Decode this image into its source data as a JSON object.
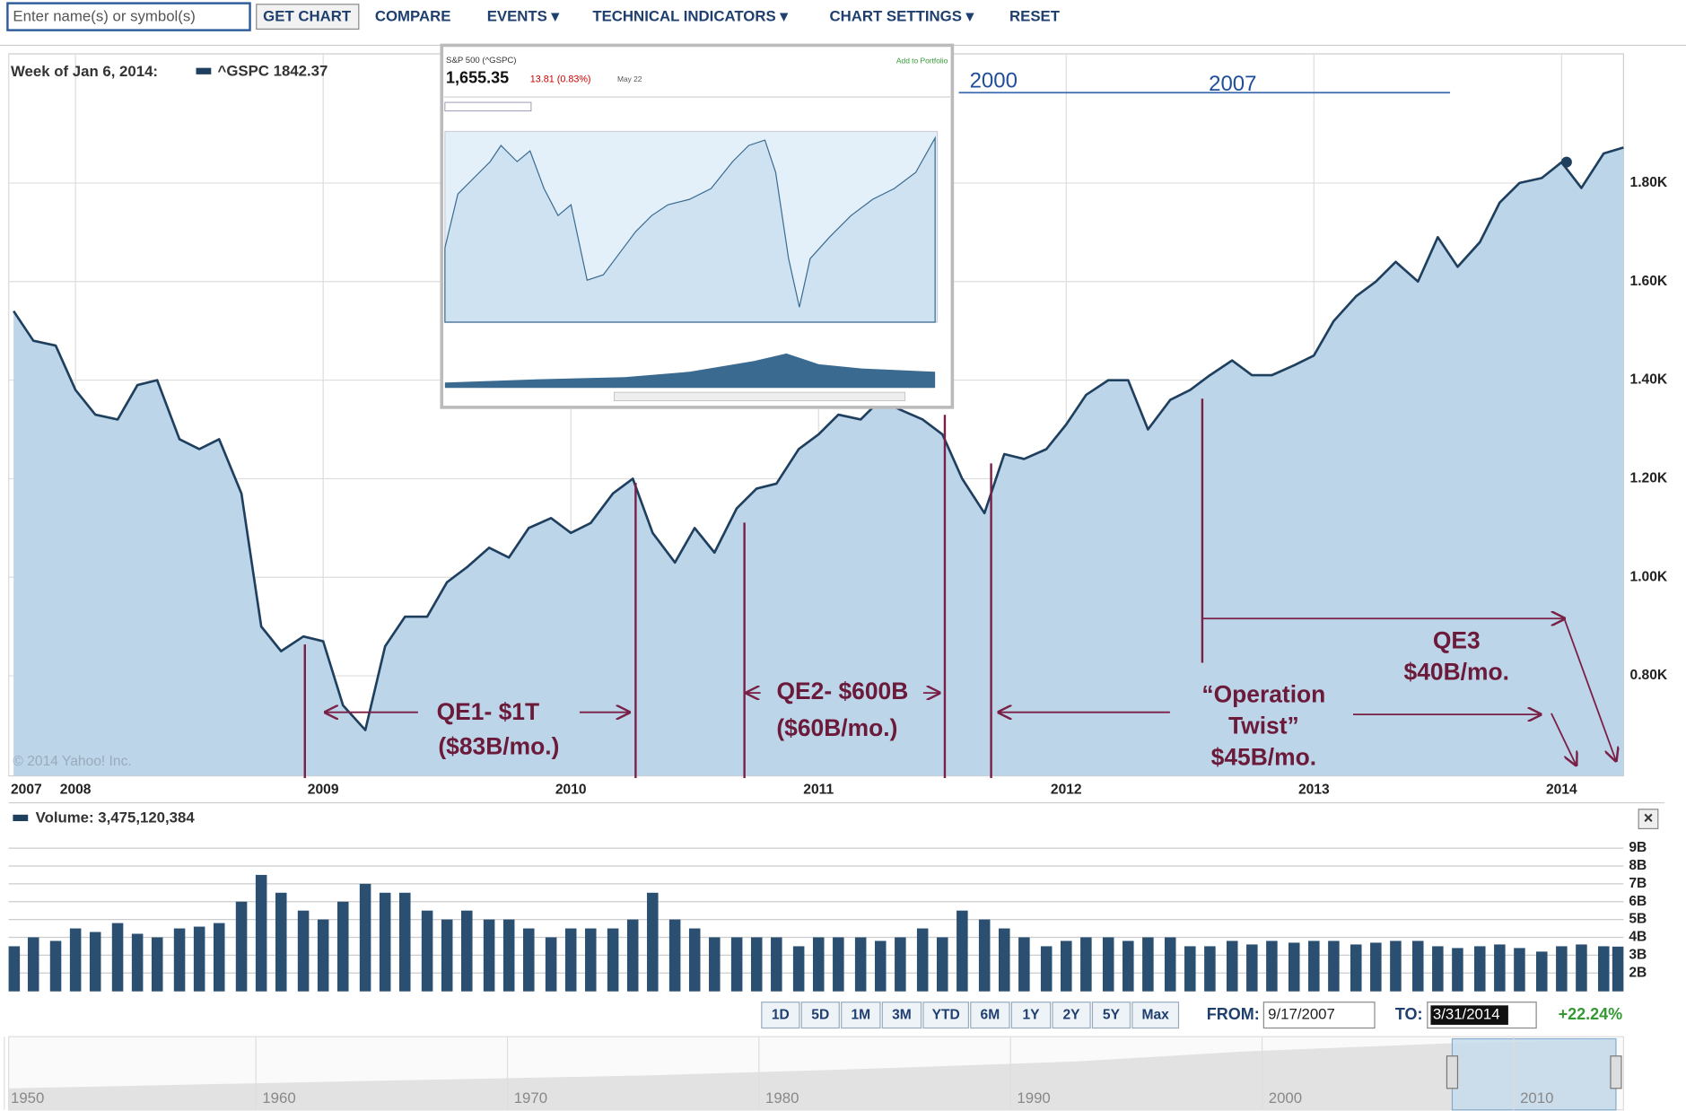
{
  "toolbar": {
    "search_placeholder": "Enter name(s) or symbol(s)",
    "buttons": [
      "GET CHART",
      "COMPARE",
      "EVENTS ▾",
      "TECHNICAL INDICATORS ▾",
      "CHART SETTINGS ▾",
      "RESET"
    ]
  },
  "inset": {
    "title": "S&P 500 (^GSPC)",
    "price": "1,655.35",
    "change": "13.81 (0.83%)",
    "date": "May 22",
    "add": "Add to Portfolio"
  },
  "inset_labels": [
    "2000",
    "2007"
  ],
  "chart_data": [
    {
      "type": "line",
      "header": "Week of Jan 6, 2014:",
      "name": "^GSPC",
      "last_value": 1842.37,
      "last_x": 2014.02,
      "color": "#1f3f5f",
      "fill": "#bcd5e8",
      "grid": true,
      "watermark": "© 2014 Yahoo! Inc.",
      "x": [
        2007.75,
        2007.83,
        2007.92,
        2008.0,
        2008.08,
        2008.17,
        2008.25,
        2008.33,
        2008.42,
        2008.5,
        2008.58,
        2008.67,
        2008.75,
        2008.83,
        2008.92,
        2009.0,
        2009.08,
        2009.17,
        2009.25,
        2009.33,
        2009.42,
        2009.5,
        2009.58,
        2009.67,
        2009.75,
        2009.83,
        2009.92,
        2010.0,
        2010.08,
        2010.17,
        2010.25,
        2010.33,
        2010.42,
        2010.5,
        2010.58,
        2010.67,
        2010.75,
        2010.83,
        2010.92,
        2011.0,
        2011.08,
        2011.17,
        2011.25,
        2011.33,
        2011.42,
        2011.5,
        2011.58,
        2011.67,
        2011.75,
        2011.83,
        2011.92,
        2012.0,
        2012.08,
        2012.17,
        2012.25,
        2012.33,
        2012.42,
        2012.5,
        2012.58,
        2012.67,
        2012.75,
        2012.83,
        2012.92,
        2013.0,
        2013.08,
        2013.17,
        2013.25,
        2013.33,
        2013.42,
        2013.5,
        2013.58,
        2013.67,
        2013.75,
        2013.83,
        2013.92,
        2014.0,
        2014.08,
        2014.17,
        2014.25
      ],
      "values": [
        1540,
        1480,
        1470,
        1380,
        1330,
        1320,
        1390,
        1400,
        1280,
        1260,
        1280,
        1170,
        900,
        850,
        880,
        870,
        740,
        690,
        860,
        920,
        920,
        990,
        1020,
        1060,
        1040,
        1100,
        1120,
        1090,
        1110,
        1170,
        1200,
        1090,
        1030,
        1100,
        1050,
        1140,
        1180,
        1190,
        1260,
        1290,
        1330,
        1320,
        1360,
        1340,
        1320,
        1290,
        1200,
        1130,
        1250,
        1240,
        1260,
        1310,
        1370,
        1400,
        1400,
        1300,
        1360,
        1380,
        1410,
        1440,
        1410,
        1410,
        1430,
        1450,
        1520,
        1570,
        1600,
        1640,
        1600,
        1690,
        1630,
        1680,
        1760,
        1800,
        1810,
        1842,
        1790,
        1860,
        1872
      ],
      "xlim": [
        2007.73,
        2014.25
      ],
      "xticks": [
        {
          "value": 2007.73,
          "label": "2007"
        },
        2008,
        2009,
        2010,
        2011,
        2012,
        2013,
        2014
      ],
      "ylim": [
        597,
        2062
      ],
      "yticks": [
        {
          "value": 800,
          "label": "0.80K"
        },
        {
          "value": 1000,
          "label": "1.00K"
        },
        {
          "value": 1200,
          "label": "1.20K"
        },
        {
          "value": 1400,
          "label": "1.40K"
        },
        {
          "value": 1600,
          "label": "1.60K"
        },
        {
          "value": 1800,
          "label": "1.80K"
        }
      ],
      "annotations": [
        "QE1- $1T",
        "($83B/mo.)",
        "QE2- $600B",
        "($60B/mo.)",
        "“Operation",
        "Twist”",
        "$45B/mo.",
        "QE3",
        "$40B/mo."
      ]
    },
    {
      "type": "bar",
      "header": "Volume:",
      "last_volume": {
        "value": 3475120384,
        "label": "3,475,120,384"
      },
      "color": "#2a4f70",
      "grid": true,
      "x": [
        2007.75,
        2007.83,
        2007.92,
        2008.0,
        2008.08,
        2008.17,
        2008.25,
        2008.33,
        2008.42,
        2008.5,
        2008.58,
        2008.67,
        2008.75,
        2008.83,
        2008.92,
        2009.0,
        2009.08,
        2009.17,
        2009.25,
        2009.33,
        2009.42,
        2009.5,
        2009.58,
        2009.67,
        2009.75,
        2009.83,
        2009.92,
        2010.0,
        2010.08,
        2010.17,
        2010.25,
        2010.33,
        2010.42,
        2010.5,
        2010.58,
        2010.67,
        2010.75,
        2010.83,
        2010.92,
        2011.0,
        2011.08,
        2011.17,
        2011.25,
        2011.33,
        2011.42,
        2011.5,
        2011.58,
        2011.67,
        2011.75,
        2011.83,
        2011.92,
        2012.0,
        2012.08,
        2012.17,
        2012.25,
        2012.33,
        2012.42,
        2012.5,
        2012.58,
        2012.67,
        2012.75,
        2012.83,
        2012.92,
        2013.0,
        2013.08,
        2013.17,
        2013.25,
        2013.33,
        2013.42,
        2013.5,
        2013.58,
        2013.67,
        2013.75,
        2013.83,
        2013.92,
        2014.0,
        2014.08,
        2014.17,
        2014.25
      ],
      "values": [
        3.5,
        4.0,
        3.8,
        4.5,
        4.3,
        4.8,
        4.2,
        4.0,
        4.5,
        4.6,
        4.8,
        6.0,
        7.5,
        6.5,
        5.5,
        5.0,
        6.0,
        7.0,
        6.5,
        6.5,
        5.5,
        5.0,
        5.5,
        5.0,
        5.0,
        4.5,
        4.0,
        4.5,
        4.5,
        4.5,
        5.0,
        6.5,
        5.0,
        4.5,
        4.0,
        4.0,
        4.0,
        4.0,
        3.5,
        4.0,
        4.0,
        4.0,
        3.8,
        4.0,
        4.5,
        4.0,
        5.5,
        5.0,
        4.5,
        4.0,
        3.5,
        3.8,
        4.0,
        4.0,
        3.8,
        4.0,
        4.0,
        3.5,
        3.5,
        3.8,
        3.6,
        3.8,
        3.7,
        3.8,
        3.8,
        3.6,
        3.7,
        3.8,
        3.8,
        3.5,
        3.4,
        3.5,
        3.6,
        3.4,
        3.2,
        3.5,
        3.6,
        3.5,
        3.48
      ],
      "xlim": [
        2007.73,
        2014.25
      ],
      "ylim": [
        0.97,
        9.73
      ],
      "yticks": [
        {
          "value": 2,
          "label": "2B"
        },
        {
          "value": 3,
          "label": "3B"
        },
        {
          "value": 4,
          "label": "4B"
        },
        {
          "value": 5,
          "label": "5B"
        },
        {
          "value": 6,
          "label": "6B"
        },
        {
          "value": 7,
          "label": "7B"
        },
        {
          "value": 8,
          "label": "8B"
        },
        {
          "value": 9,
          "label": "9B"
        }
      ]
    }
  ],
  "range": {
    "buttons": [
      "1D",
      "5D",
      "1M",
      "3M",
      "YTD",
      "6M",
      "1Y",
      "2Y",
      "5Y",
      "Max"
    ],
    "from_label": "FROM:",
    "from": "9/17/2007",
    "to_label": "TO:",
    "to": "3/31/2014",
    "change": "+22.24%"
  },
  "navigator": {
    "xticks": [
      1950,
      1960,
      1970,
      1980,
      1990,
      2000,
      2010
    ]
  }
}
